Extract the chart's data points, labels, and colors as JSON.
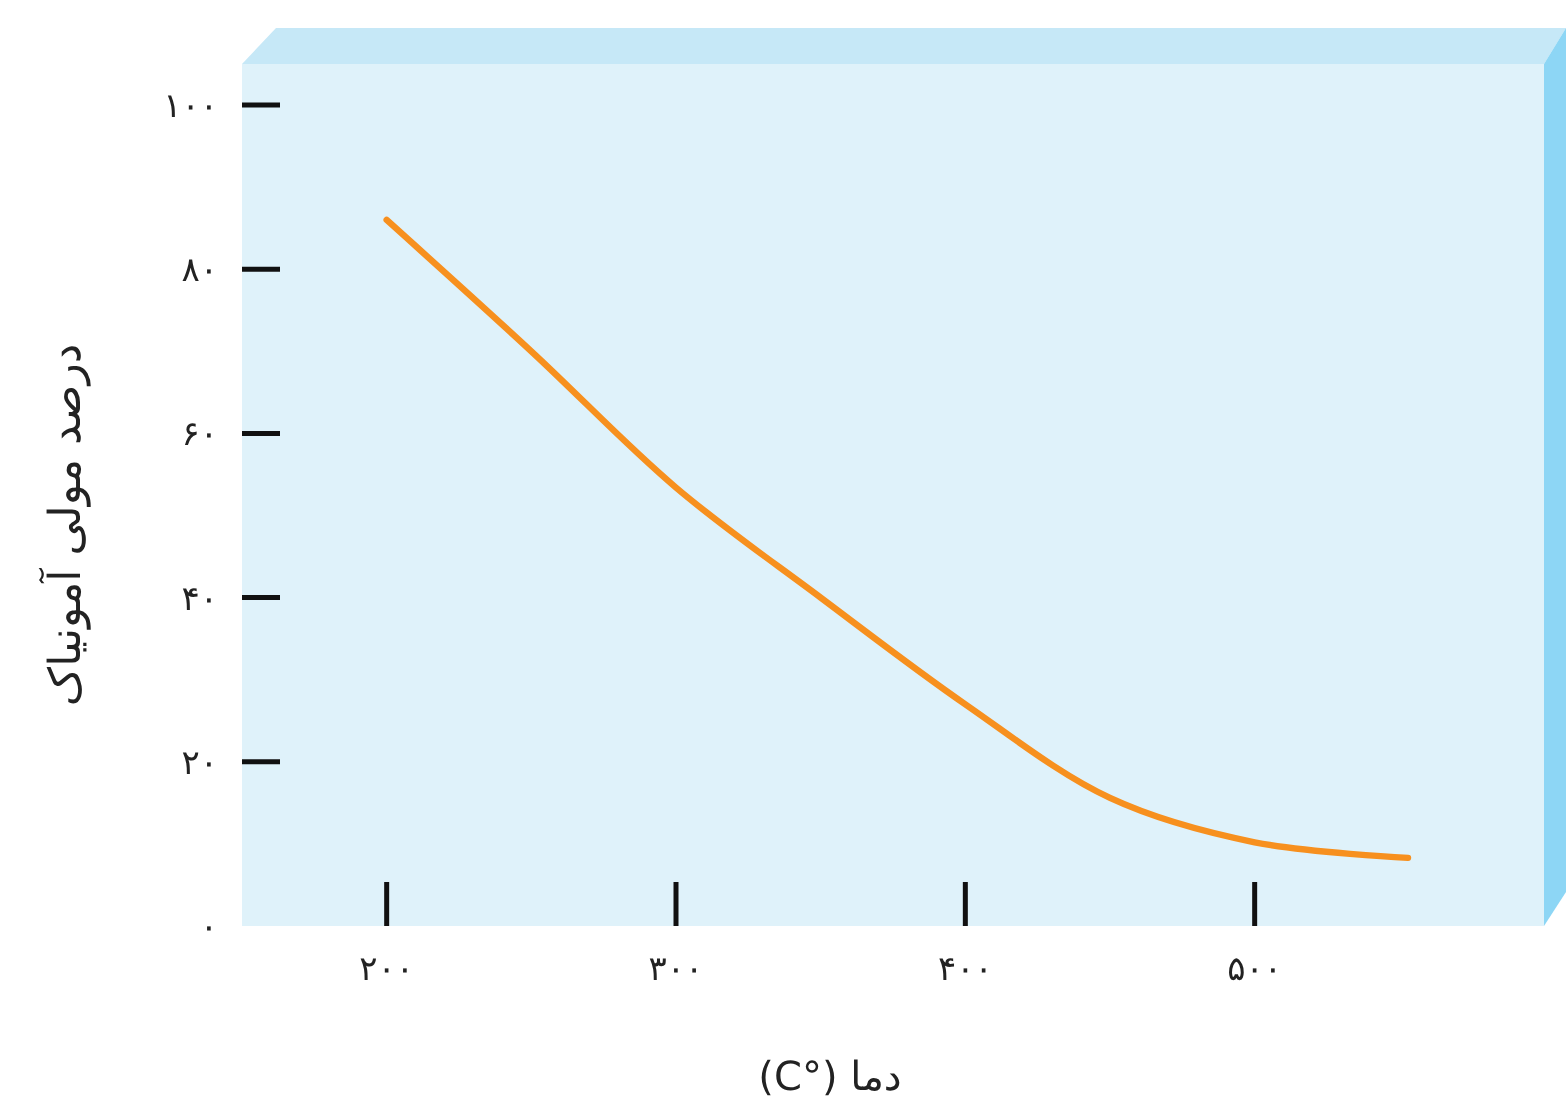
{
  "chart_data": {
    "type": "line",
    "xlabel": "دما (°C)",
    "ylabel": "درصد مولی آمونیاک",
    "x": [
      200,
      250,
      300,
      350,
      400,
      450,
      500,
      553
    ],
    "series": [
      {
        "color": "#f7901e",
        "values": [
          86,
          70,
          53.4,
          40,
          27,
          15.6,
          10.2,
          8.3
        ]
      }
    ],
    "xlim": [
      150,
      600
    ],
    "ylim": [
      0,
      105
    ],
    "xticks": [
      {
        "value": 200,
        "label": "۲۰۰"
      },
      {
        "value": 300,
        "label": "۳۰۰"
      },
      {
        "value": 400,
        "label": "۴۰۰"
      },
      {
        "value": 500,
        "label": "۵۰۰"
      }
    ],
    "yticks": [
      {
        "value": 0,
        "label": "۰"
      },
      {
        "value": 20,
        "label": "۲۰"
      },
      {
        "value": 40,
        "label": "۴۰"
      },
      {
        "value": 60,
        "label": "۶۰"
      },
      {
        "value": 80,
        "label": "۸۰"
      },
      {
        "value": 100,
        "label": "۱۰۰"
      }
    ],
    "grid": false,
    "marker": "none",
    "line_style": "solid"
  }
}
